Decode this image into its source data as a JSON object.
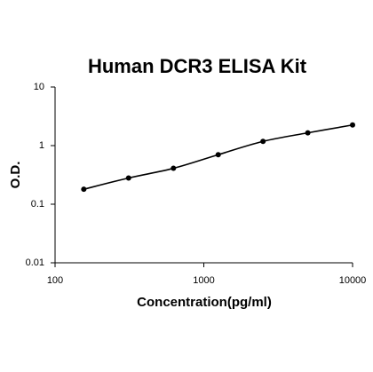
{
  "chart_data": {
    "type": "line",
    "title": "Human DCR3 ELISA Kit",
    "x_label": "Concentration(pg/ml)",
    "y_label": "O.D.",
    "x": [
      156,
      312,
      625,
      1250,
      2500,
      5000,
      10000
    ],
    "series": [
      {
        "color": "#000000",
        "values": [
          0.18,
          0.28,
          0.41,
          0.7,
          1.18,
          1.65,
          2.25
        ]
      }
    ],
    "xscale": "log",
    "yscale": "log",
    "xlim": [
      100,
      10000
    ],
    "xticks": [
      100,
      1000,
      10000
    ],
    "ylim": [
      0.01,
      10
    ],
    "yticks": [
      0.01,
      0.1,
      1,
      10
    ],
    "grid": false
  }
}
